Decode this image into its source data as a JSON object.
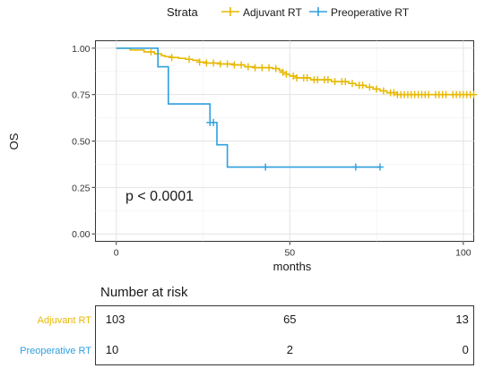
{
  "legend": {
    "title": "Strata",
    "entries": [
      {
        "label": "Adjuvant RT",
        "color": "#E7B800"
      },
      {
        "label": "Preoperative RT",
        "color": "#2E9FDF"
      }
    ]
  },
  "chart_data": {
    "type": "line",
    "subtype": "kaplan-meier-step",
    "title": "",
    "xlabel": "months",
    "ylabel": "OS",
    "xlim": [
      -6,
      103
    ],
    "ylim": [
      -0.04,
      1.04
    ],
    "xticks": [
      0,
      50,
      100
    ],
    "yticks": [
      0.0,
      0.25,
      0.5,
      0.75,
      1.0
    ],
    "ytick_labels": [
      "0.00",
      "0.25",
      "0.50",
      "0.75",
      "1.00"
    ],
    "grid": true,
    "legend_position": "top",
    "annotation": "p < 0.0001",
    "series": [
      {
        "name": "Adjuvant RT",
        "color": "#E7B800",
        "steps": [
          [
            0,
            1.0
          ],
          [
            4,
            0.99
          ],
          [
            8,
            0.98
          ],
          [
            11,
            0.97
          ],
          [
            13,
            0.96
          ],
          [
            14,
            0.955
          ],
          [
            16,
            0.95
          ],
          [
            18,
            0.945
          ],
          [
            20,
            0.94
          ],
          [
            22,
            0.935
          ],
          [
            24,
            0.925
          ],
          [
            26,
            0.92
          ],
          [
            30,
            0.915
          ],
          [
            34,
            0.91
          ],
          [
            37,
            0.9
          ],
          [
            40,
            0.895
          ],
          [
            45,
            0.89
          ],
          [
            47,
            0.88
          ],
          [
            48,
            0.87
          ],
          [
            49,
            0.86
          ],
          [
            50,
            0.85
          ],
          [
            52,
            0.84
          ],
          [
            56,
            0.83
          ],
          [
            62,
            0.82
          ],
          [
            67,
            0.81
          ],
          [
            69,
            0.8
          ],
          [
            72,
            0.79
          ],
          [
            74,
            0.78
          ],
          [
            76,
            0.77
          ],
          [
            78,
            0.76
          ],
          [
            81,
            0.75
          ],
          [
            103,
            0.75
          ]
        ],
        "censor_x": [
          10,
          16,
          21,
          24,
          26,
          28,
          30,
          32,
          34,
          36,
          38,
          40,
          42,
          44,
          46,
          48,
          49,
          51,
          52,
          54,
          55,
          57,
          58,
          60,
          61,
          63,
          65,
          66,
          68,
          70,
          71,
          73,
          75,
          77,
          79,
          80,
          81,
          82,
          83,
          84,
          85,
          86,
          87,
          88,
          89,
          90,
          92,
          93,
          94,
          95,
          97,
          98,
          99,
          100,
          101,
          102,
          103
        ]
      },
      {
        "name": "Preoperative RT",
        "color": "#2E9FDF",
        "steps": [
          [
            0,
            1.0
          ],
          [
            12,
            0.9
          ],
          [
            15,
            0.7
          ],
          [
            27,
            0.6
          ],
          [
            29,
            0.48
          ],
          [
            32,
            0.36
          ],
          [
            76,
            0.36
          ]
        ],
        "censor_x": [
          27,
          28,
          43,
          69,
          76
        ]
      }
    ]
  },
  "risk_table": {
    "title": "Number at risk",
    "time_points": [
      0,
      50,
      100
    ],
    "rows": [
      {
        "label": "Adjuvant RT",
        "color": "#E7B800",
        "counts": [
          "103",
          "65",
          "13"
        ]
      },
      {
        "label": "Preoperative RT",
        "color": "#2E9FDF",
        "counts": [
          "10",
          "2",
          "0"
        ]
      }
    ]
  }
}
